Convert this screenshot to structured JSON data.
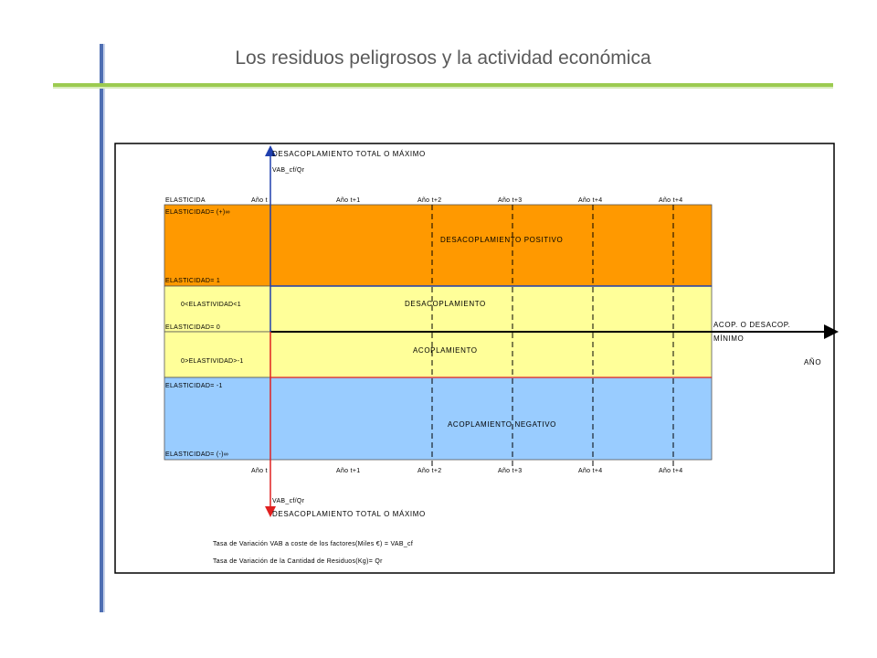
{
  "slide": {
    "title": "Los residuos peligrosos y la actividad económica"
  },
  "diagram": {
    "top_axis_title": "DESACOPLAMIENTO TOTAL O MÁXIMO",
    "top_axis_var": "VAB_cf/Qr",
    "bottom_axis_var": "VAB_cf/Qr",
    "bottom_axis_title": "DESACOPLAMIENTO TOTAL O MÁXIMO",
    "header_left": "ELASTICIDA",
    "years_top": [
      "Año t",
      "Año t+1",
      "Año t+2",
      "Año t+3",
      "Año t+4",
      "Año t+4"
    ],
    "years_bottom": [
      "Año t",
      "Año t+1",
      "Año t+2",
      "Año t+3",
      "Año t+4",
      "Año t+4"
    ],
    "elasticity_labels": {
      "plus_inf": "ELASTICIDAD= (+)∞",
      "one": "ELASTICIDAD= 1",
      "between_0_1": "0<ELASTIVIDAD<1",
      "zero": "ELASTICIDAD= 0",
      "between_0_m1": "0>ELASTIVIDAD>-1",
      "minus_one": "ELASTICIDAD= -1",
      "minus_inf": "ELASTICIDAD= (-)∞"
    },
    "zones": {
      "positive_decoupling": "DESACOPLAMIENTO POSITIVO",
      "decoupling": "DESACOPLAMIENTO",
      "coupling": "ACOPLAMIENTO",
      "negative_coupling": "ACOPLAMIENTO NEGATIVO"
    },
    "right_axis_label_1": "ACOP. O DESACOP.",
    "right_axis_label_2": "MÍNIMO",
    "year_axis_label": "AÑO",
    "notes": [
      "Tasa de Variación VAB a coste de los factores(Miles €) = VAB_cf",
      "Tasa de Variación de la Cantidad de Residuos(Kg)= Qr"
    ],
    "colors": {
      "orange_zone": "#ff9900",
      "yellow_zone": "#ffff99",
      "blue_zone": "#99ccff",
      "axis_blue": "#1f3fae",
      "axis_red": "#e02020"
    }
  }
}
